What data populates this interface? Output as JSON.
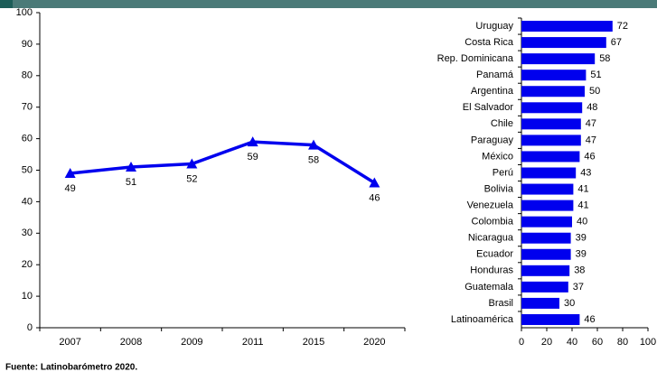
{
  "chart_data": [
    {
      "type": "line",
      "categories": [
        "2007",
        "2008",
        "2009",
        "2011",
        "2015",
        "2020"
      ],
      "values": [
        49,
        51,
        52,
        59,
        58,
        46
      ],
      "color": "#0000ee",
      "ylim": [
        0,
        100
      ],
      "yticks": [
        0,
        10,
        20,
        30,
        40,
        50,
        60,
        70,
        80,
        90,
        100
      ]
    },
    {
      "type": "hbar",
      "categories": [
        "Uruguay",
        "Costa Rica",
        "Rep. Dominicana",
        "Panamá",
        "Argentina",
        "El Salvador",
        "Chile",
        "Paraguay",
        "México",
        "Perú",
        "Bolivia",
        "Venezuela",
        "Colombia",
        "Nicaragua",
        "Ecuador",
        "Honduras",
        "Guatemala",
        "Brasil",
        "Latinoamérica"
      ],
      "values": [
        72,
        67,
        58,
        51,
        50,
        48,
        47,
        47,
        46,
        43,
        41,
        41,
        40,
        39,
        39,
        38,
        37,
        30,
        46
      ],
      "color": "#0000ee",
      "xlim": [
        0,
        100
      ],
      "xticks": [
        0,
        20,
        40,
        60,
        80,
        100
      ]
    }
  ],
  "footer": "Fuente: Latinobarómetro 2020."
}
